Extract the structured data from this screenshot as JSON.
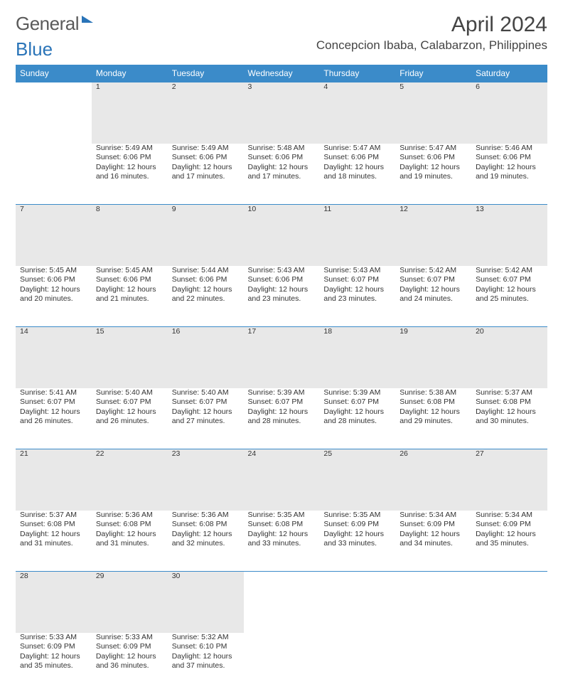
{
  "logo": {
    "part1": "General",
    "part2": "Blue"
  },
  "title": "April 2024",
  "location": "Concepcion Ibaba, Calabarzon, Philippines",
  "calendar": {
    "header_bg": "#3b8bc9",
    "header_fg": "#ffffff",
    "daynum_bg": "#e8e8e8",
    "divider": "#3b8bc9",
    "days": [
      "Sunday",
      "Monday",
      "Tuesday",
      "Wednesday",
      "Thursday",
      "Friday",
      "Saturday"
    ],
    "weeks": [
      [
        null,
        {
          "n": "1",
          "sr": "5:49 AM",
          "ss": "6:06 PM",
          "dl": "12 hours and 16 minutes."
        },
        {
          "n": "2",
          "sr": "5:49 AM",
          "ss": "6:06 PM",
          "dl": "12 hours and 17 minutes."
        },
        {
          "n": "3",
          "sr": "5:48 AM",
          "ss": "6:06 PM",
          "dl": "12 hours and 17 minutes."
        },
        {
          "n": "4",
          "sr": "5:47 AM",
          "ss": "6:06 PM",
          "dl": "12 hours and 18 minutes."
        },
        {
          "n": "5",
          "sr": "5:47 AM",
          "ss": "6:06 PM",
          "dl": "12 hours and 19 minutes."
        },
        {
          "n": "6",
          "sr": "5:46 AM",
          "ss": "6:06 PM",
          "dl": "12 hours and 19 minutes."
        }
      ],
      [
        {
          "n": "7",
          "sr": "5:45 AM",
          "ss": "6:06 PM",
          "dl": "12 hours and 20 minutes."
        },
        {
          "n": "8",
          "sr": "5:45 AM",
          "ss": "6:06 PM",
          "dl": "12 hours and 21 minutes."
        },
        {
          "n": "9",
          "sr": "5:44 AM",
          "ss": "6:06 PM",
          "dl": "12 hours and 22 minutes."
        },
        {
          "n": "10",
          "sr": "5:43 AM",
          "ss": "6:06 PM",
          "dl": "12 hours and 23 minutes."
        },
        {
          "n": "11",
          "sr": "5:43 AM",
          "ss": "6:07 PM",
          "dl": "12 hours and 23 minutes."
        },
        {
          "n": "12",
          "sr": "5:42 AM",
          "ss": "6:07 PM",
          "dl": "12 hours and 24 minutes."
        },
        {
          "n": "13",
          "sr": "5:42 AM",
          "ss": "6:07 PM",
          "dl": "12 hours and 25 minutes."
        }
      ],
      [
        {
          "n": "14",
          "sr": "5:41 AM",
          "ss": "6:07 PM",
          "dl": "12 hours and 26 minutes."
        },
        {
          "n": "15",
          "sr": "5:40 AM",
          "ss": "6:07 PM",
          "dl": "12 hours and 26 minutes."
        },
        {
          "n": "16",
          "sr": "5:40 AM",
          "ss": "6:07 PM",
          "dl": "12 hours and 27 minutes."
        },
        {
          "n": "17",
          "sr": "5:39 AM",
          "ss": "6:07 PM",
          "dl": "12 hours and 28 minutes."
        },
        {
          "n": "18",
          "sr": "5:39 AM",
          "ss": "6:07 PM",
          "dl": "12 hours and 28 minutes."
        },
        {
          "n": "19",
          "sr": "5:38 AM",
          "ss": "6:08 PM",
          "dl": "12 hours and 29 minutes."
        },
        {
          "n": "20",
          "sr": "5:37 AM",
          "ss": "6:08 PM",
          "dl": "12 hours and 30 minutes."
        }
      ],
      [
        {
          "n": "21",
          "sr": "5:37 AM",
          "ss": "6:08 PM",
          "dl": "12 hours and 31 minutes."
        },
        {
          "n": "22",
          "sr": "5:36 AM",
          "ss": "6:08 PM",
          "dl": "12 hours and 31 minutes."
        },
        {
          "n": "23",
          "sr": "5:36 AM",
          "ss": "6:08 PM",
          "dl": "12 hours and 32 minutes."
        },
        {
          "n": "24",
          "sr": "5:35 AM",
          "ss": "6:08 PM",
          "dl": "12 hours and 33 minutes."
        },
        {
          "n": "25",
          "sr": "5:35 AM",
          "ss": "6:09 PM",
          "dl": "12 hours and 33 minutes."
        },
        {
          "n": "26",
          "sr": "5:34 AM",
          "ss": "6:09 PM",
          "dl": "12 hours and 34 minutes."
        },
        {
          "n": "27",
          "sr": "5:34 AM",
          "ss": "6:09 PM",
          "dl": "12 hours and 35 minutes."
        }
      ],
      [
        {
          "n": "28",
          "sr": "5:33 AM",
          "ss": "6:09 PM",
          "dl": "12 hours and 35 minutes."
        },
        {
          "n": "29",
          "sr": "5:33 AM",
          "ss": "6:09 PM",
          "dl": "12 hours and 36 minutes."
        },
        {
          "n": "30",
          "sr": "5:32 AM",
          "ss": "6:10 PM",
          "dl": "12 hours and 37 minutes."
        },
        null,
        null,
        null,
        null
      ]
    ],
    "labels": {
      "sunrise": "Sunrise:",
      "sunset": "Sunset:",
      "daylight": "Daylight:"
    }
  }
}
